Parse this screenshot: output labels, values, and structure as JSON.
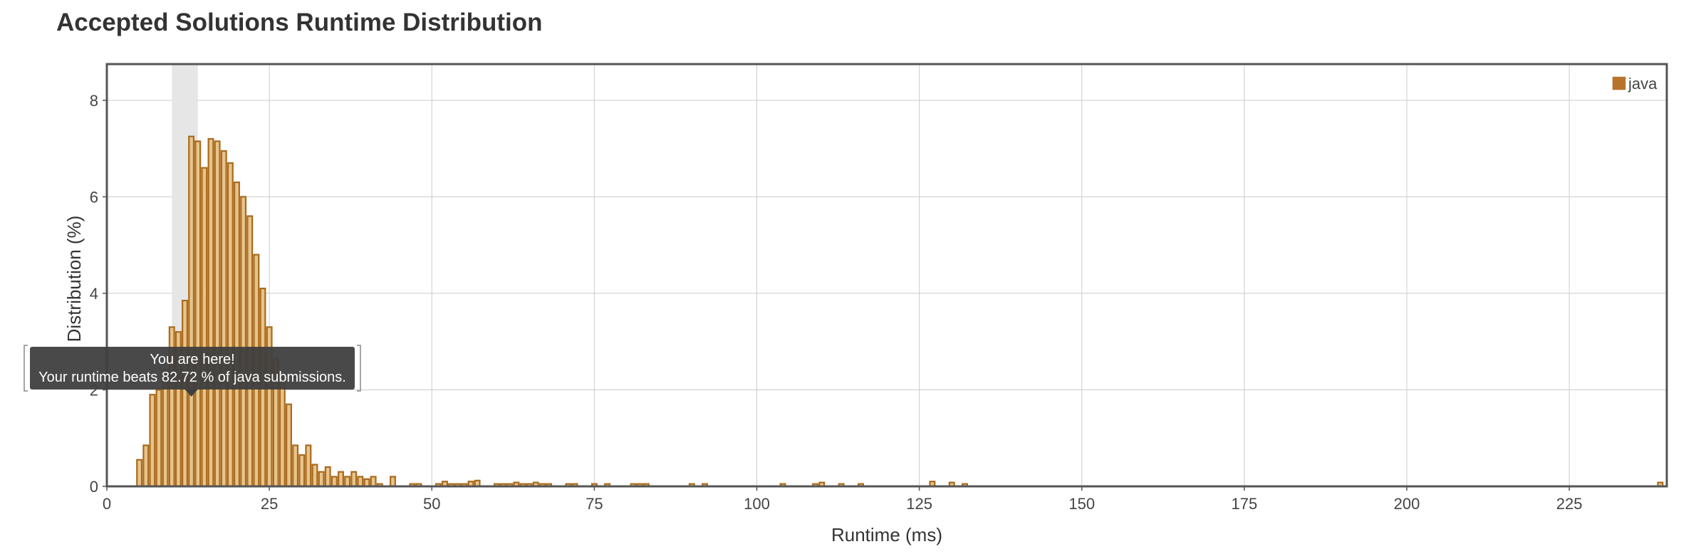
{
  "page": {
    "title": "Accepted Solutions Runtime Distribution"
  },
  "tooltip": {
    "line1": "You are here!",
    "line2": "Your runtime beats 82.72 % of java submissions."
  },
  "colors": {
    "bar_fill": "#e8c48a",
    "bar_stroke": "#a86a1e",
    "legend_swatch": "#b8732a",
    "highlight_band": "#e6e6e6",
    "grid": "#cccccc",
    "frame": "#555555",
    "tooltip_bg": "#3f3f3f"
  },
  "chart_data": {
    "type": "bar",
    "xlabel": "Runtime (ms)",
    "ylabel": "Distribution (%)",
    "xlim": [
      0,
      240
    ],
    "ylim": [
      0,
      8.75
    ],
    "xticks": [
      0,
      25,
      50,
      75,
      100,
      125,
      150,
      175,
      200,
      225
    ],
    "yticks": [
      0,
      2,
      4,
      6,
      8
    ],
    "grid": true,
    "legend_position": "top-right",
    "highlight_range": [
      10,
      14
    ],
    "marker_x": 13,
    "series": [
      {
        "name": "java",
        "bar_width": 1,
        "x": [
          5,
          6,
          7,
          8,
          9,
          10,
          11,
          12,
          13,
          14,
          15,
          16,
          17,
          18,
          19,
          20,
          21,
          22,
          23,
          24,
          25,
          26,
          27,
          28,
          29,
          30,
          31,
          32,
          33,
          34,
          35,
          36,
          37,
          38,
          39,
          40,
          41,
          42,
          44,
          47,
          48,
          51,
          52,
          53,
          54,
          55,
          56,
          57,
          60,
          61,
          62,
          63,
          64,
          65,
          66,
          67,
          68,
          71,
          72,
          75,
          77,
          81,
          82,
          83,
          90,
          92,
          104,
          109,
          110,
          113,
          116,
          127,
          130,
          132,
          239
        ],
        "values": [
          0.55,
          0.85,
          1.9,
          2.0,
          2.4,
          3.3,
          3.2,
          3.85,
          7.25,
          7.15,
          6.6,
          7.2,
          7.15,
          6.95,
          6.7,
          6.3,
          6.0,
          5.6,
          4.8,
          4.1,
          3.3,
          2.65,
          2.3,
          1.7,
          0.85,
          0.65,
          0.85,
          0.45,
          0.3,
          0.4,
          0.2,
          0.3,
          0.2,
          0.3,
          0.2,
          0.15,
          0.2,
          0.05,
          0.2,
          0.05,
          0.05,
          0.05,
          0.1,
          0.05,
          0.05,
          0.05,
          0.1,
          0.12,
          0.05,
          0.05,
          0.05,
          0.08,
          0.05,
          0.05,
          0.08,
          0.05,
          0.05,
          0.05,
          0.05,
          0.05,
          0.05,
          0.05,
          0.05,
          0.05,
          0.05,
          0.05,
          0.05,
          0.05,
          0.08,
          0.05,
          0.05,
          0.1,
          0.08,
          0.05,
          0.08
        ]
      }
    ]
  }
}
